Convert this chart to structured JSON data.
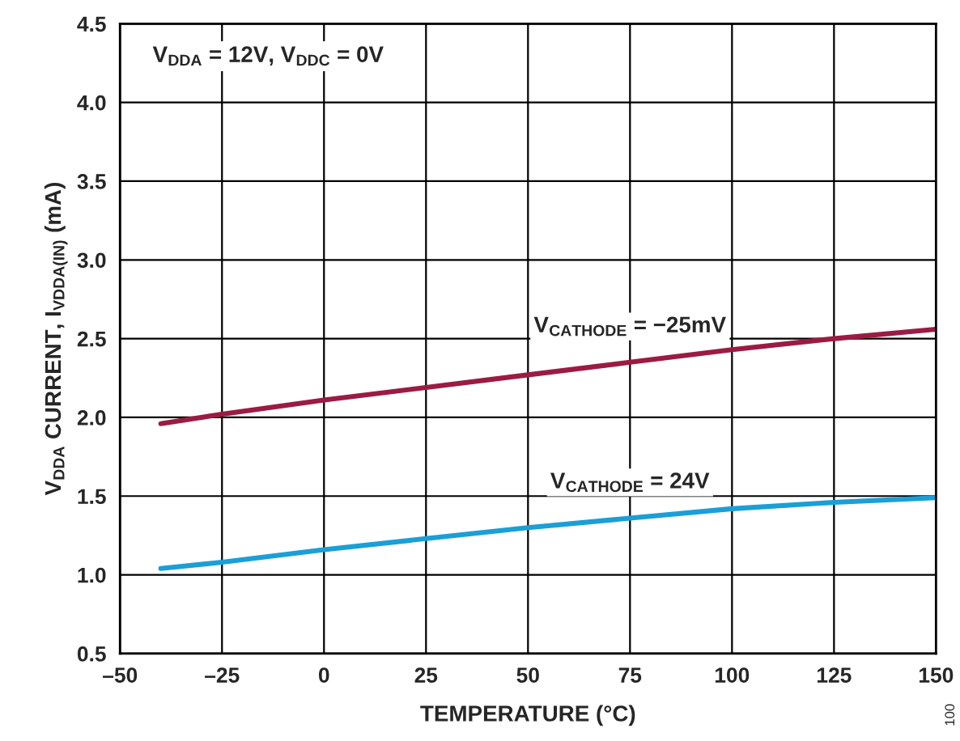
{
  "chart_data": {
    "type": "line",
    "xlabel": "TEMPERATURE (°C)",
    "ylabel": "V$_{DDA}$ CURRENT, I$_{VDDA(IN)}$ (mA)",
    "x": [
      -40,
      -25,
      0,
      25,
      50,
      75,
      100,
      125,
      150
    ],
    "series": [
      {
        "name": "V$_{CATHODE}$ = −25mV",
        "color": "#9b1b43",
        "values": [
          1.96,
          2.02,
          2.11,
          2.19,
          2.27,
          2.35,
          2.43,
          2.5,
          2.56
        ]
      },
      {
        "name": "V$_{CATHODE}$ = 24V",
        "color": "#1a9fd6",
        "values": [
          1.04,
          1.08,
          1.16,
          1.23,
          1.3,
          1.36,
          1.42,
          1.46,
          1.49
        ]
      }
    ],
    "xlim": [
      -50,
      150
    ],
    "xticks": [
      {
        "value": -50,
        "label": "–50"
      },
      {
        "value": -25,
        "label": "–25"
      },
      0,
      25,
      50,
      75,
      100,
      125,
      150
    ],
    "ylim": [
      0.5,
      4.5
    ],
    "yticks": [
      {
        "value": 0.5,
        "label": "0.5"
      },
      {
        "value": 1.0,
        "label": "1.0"
      },
      {
        "value": 1.5,
        "label": "1.5"
      },
      {
        "value": 2.0,
        "label": "2.0"
      },
      {
        "value": 2.5,
        "label": "2.5"
      },
      {
        "value": 3.0,
        "label": "3.0"
      },
      {
        "value": 3.5,
        "label": "3.5"
      },
      {
        "value": 4.0,
        "label": "4.0"
      },
      {
        "value": 4.5,
        "label": "4.5"
      }
    ],
    "grid": true,
    "legend": false,
    "marker": "none",
    "line_style": "solid",
    "annotations": [
      "V$_{DDA}$ = 12V, V$_{DDC}$ = 0V",
      "100"
    ]
  }
}
